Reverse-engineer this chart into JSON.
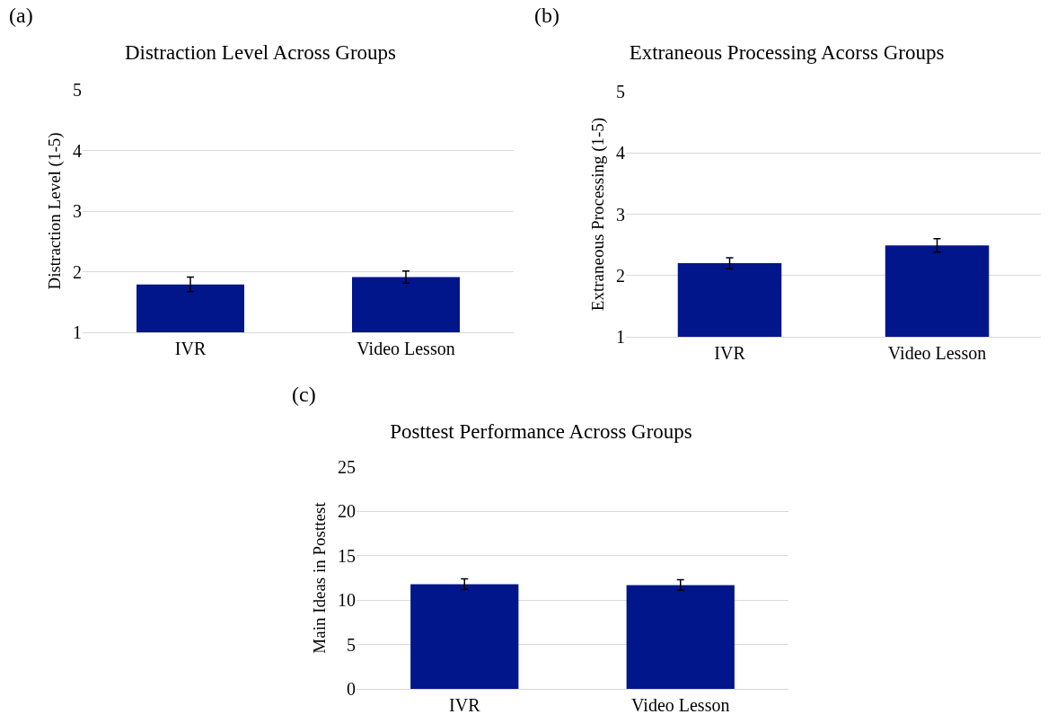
{
  "chart_data": [
    {
      "type": "bar",
      "title": "Distraction Level Across Groups",
      "ylabel": "Distraction Level (1-5)",
      "annotations": [
        "(a)"
      ],
      "categories": [
        "IVR",
        "Video Lesson"
      ],
      "values": [
        1.79,
        1.91
      ],
      "errors": [
        0.12,
        0.1
      ],
      "color": "#00168a",
      "ylim": [
        1,
        5
      ],
      "yticks": [
        1,
        2,
        3,
        4,
        5
      ],
      "grid": "y"
    },
    {
      "type": "bar",
      "title": "Extraneous Processing Acorss Groups",
      "ylabel": "Extraneous Processing (1-5)",
      "annotations": [
        "(b)"
      ],
      "categories": [
        "IVR",
        "Video Lesson"
      ],
      "values": [
        2.2,
        2.49
      ],
      "errors": [
        0.09,
        0.11
      ],
      "color": "#00168a",
      "ylim": [
        1,
        5
      ],
      "yticks": [
        1,
        2,
        3,
        4,
        5
      ],
      "grid": "y"
    },
    {
      "type": "bar",
      "title": "Posttest Performance Across Groups",
      "ylabel": "Main Ideas in Posttest",
      "annotations": [
        "(c)"
      ],
      "categories": [
        "IVR",
        "Video Lesson"
      ],
      "values": [
        11.8,
        11.7
      ],
      "errors": [
        0.6,
        0.6
      ],
      "color": "#00168a",
      "ylim": [
        0,
        25
      ],
      "yticks": [
        0,
        5,
        10,
        15,
        20,
        25
      ],
      "grid": "y"
    }
  ]
}
